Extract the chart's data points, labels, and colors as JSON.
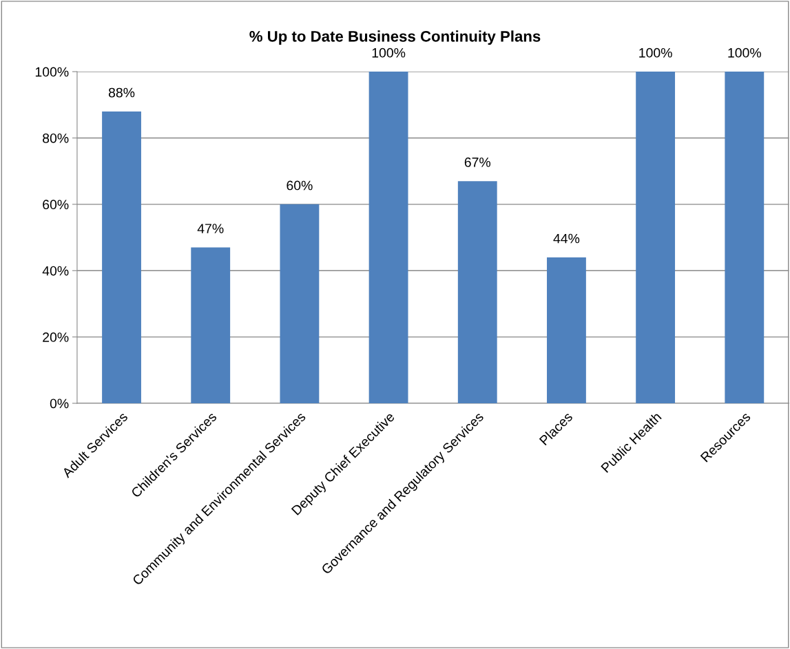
{
  "chart_data": {
    "type": "bar",
    "title": "% Up to Date Business Continuity Plans",
    "categories": [
      "Adult Services",
      "Children's Services",
      "Community and Environmental Services",
      "Deputy Chief Executive",
      "Governance and Regulatory Services",
      "Places",
      "Public Health",
      "Resources"
    ],
    "values": [
      88,
      47,
      60,
      100,
      67,
      44,
      100,
      100
    ],
    "value_labels": [
      "88%",
      "47%",
      "60%",
      "100%",
      "67%",
      "44%",
      "100%",
      "100%"
    ],
    "color": "#4f81bd",
    "ylim": [
      0,
      100
    ],
    "yticks": [
      {
        "value": 0,
        "label": "0%"
      },
      {
        "value": 20,
        "label": "20%"
      },
      {
        "value": 40,
        "label": "40%"
      },
      {
        "value": 60,
        "label": "60%"
      },
      {
        "value": 80,
        "label": "80%"
      },
      {
        "value": 100,
        "label": "100%"
      }
    ],
    "grid": "y",
    "legend": false
  }
}
